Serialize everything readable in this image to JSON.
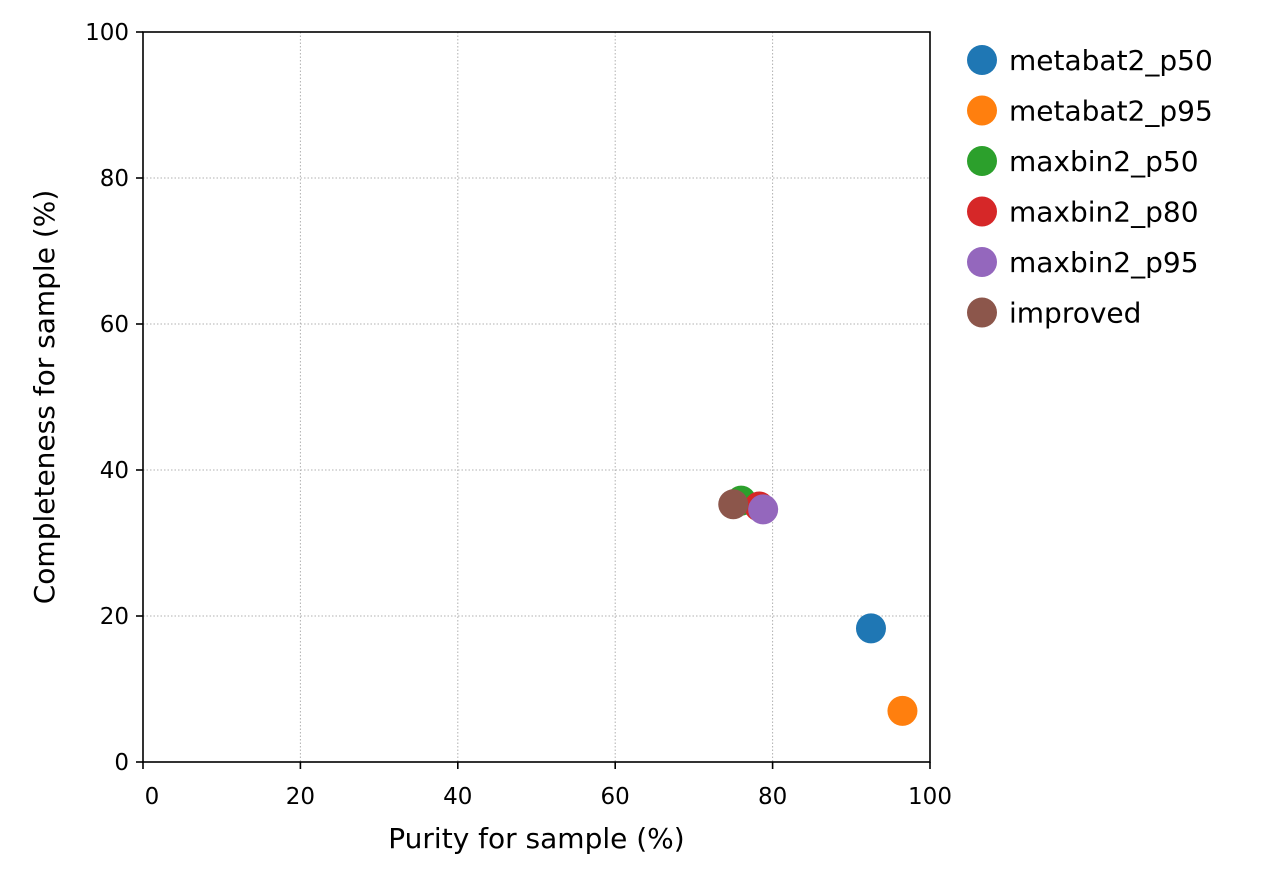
{
  "chart_data": {
    "type": "scatter",
    "xlabel": "Purity for sample (%)",
    "ylabel": "Completeness for sample (%)",
    "xlim": [
      0,
      100
    ],
    "ylim": [
      0,
      100
    ],
    "xticks": [
      0,
      20,
      40,
      60,
      80,
      100
    ],
    "yticks": [
      0,
      20,
      40,
      60,
      80,
      100
    ],
    "xtick_labels": [
      "0",
      "20",
      "40",
      "60",
      "80",
      "100"
    ],
    "ytick_labels": [
      "0",
      "20",
      "40",
      "60",
      "80",
      "100"
    ],
    "grid": true,
    "grid_style": "dotted",
    "legend_position": "outside-right-top",
    "series": [
      {
        "name": "metabat2_p50",
        "color": "#1f77b4",
        "x": [
          92.5
        ],
        "y": [
          18.3
        ]
      },
      {
        "name": "metabat2_p95",
        "color": "#ff7f0e",
        "x": [
          96.5
        ],
        "y": [
          7.0
        ]
      },
      {
        "name": "maxbin2_p50",
        "color": "#2ca02c",
        "x": [
          76.0
        ],
        "y": [
          35.8
        ]
      },
      {
        "name": "maxbin2_p80",
        "color": "#d62728",
        "x": [
          78.3
        ],
        "y": [
          35.0
        ]
      },
      {
        "name": "maxbin2_p95",
        "color": "#9467bd",
        "x": [
          78.8
        ],
        "y": [
          34.6
        ]
      },
      {
        "name": "improved",
        "color": "#8c564b",
        "x": [
          75.0
        ],
        "y": [
          35.3
        ]
      }
    ]
  }
}
